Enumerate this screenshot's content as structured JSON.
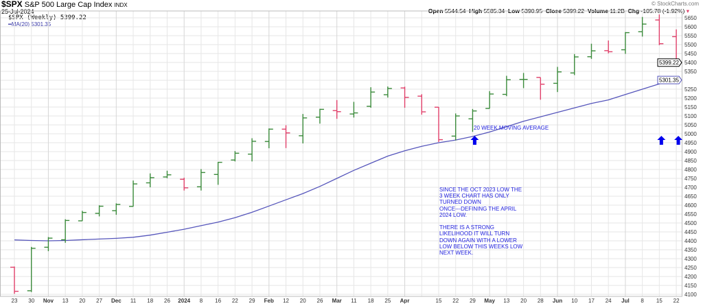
{
  "header": {
    "symbol": "$SPX",
    "name": "S&P 500 Large Cap Index",
    "exchange": "INDX",
    "date": "25-Jul-2024",
    "copyright": "© StockCharts.com",
    "legend_price": "$SPX (Weekly) 5399.22",
    "legend_ma": "MA(20) 5301.35",
    "open_label": "Open",
    "open": "5544.54",
    "high_label": "High",
    "high": "5585.34",
    "low_label": "Low",
    "low": "5390.95",
    "close_label": "Close",
    "close": "5399.22",
    "volume_label": "Volume",
    "volume": "11.2B",
    "chg_label": "Chg",
    "chg": "-105.78 (-1.92%)"
  },
  "annotations": {
    "ma_note": "20 WEEK MOVING AVERAGE",
    "commentary": "SINCE THE OCT 2023 LOW THE\n3 WEEK CHART HAS ONLY\nTURNED DOWN\nONCE---DEFINING THE APRIL\n2024 LOW.\n\nTHERE IS A STRONG\nLIKELIHOOD IT WILL TURN\nDOWN AGAIN WITH A LOWER\nLOW BELOW THIS WEEKS LOW\nNEXT WEEK."
  },
  "colors": {
    "up": "#3a8a3a",
    "down": "#e0406a",
    "ma": "#5555bb",
    "arrow": "#0000ee",
    "grid": "#e6e6e6"
  },
  "chart_data": {
    "type": "ohlc",
    "scale": "linear",
    "grid": true,
    "ylim": [
      4100,
      5650
    ],
    "yticks": [
      4100,
      4150,
      4200,
      4250,
      4300,
      4350,
      4400,
      4450,
      4500,
      4550,
      4600,
      4650,
      4700,
      4750,
      4800,
      4850,
      4900,
      4950,
      5000,
      5050,
      5100,
      5150,
      5200,
      5250,
      5350,
      5400,
      5450,
      5500,
      5550,
      5600,
      5650
    ],
    "price_tag": "5399.22",
    "ma_tag": "5301.35",
    "xlabels": [
      "23",
      "30",
      "Nov",
      "13",
      "20",
      "27",
      "Dec",
      "11",
      "18",
      "26",
      "2024",
      "8",
      "16",
      "22",
      "29",
      "Feb",
      "12",
      "20",
      "26",
      "Mar",
      "11",
      "18",
      "25",
      "Apr",
      "",
      "15",
      "22",
      "29",
      "May",
      "13",
      "20",
      "28",
      "Jun",
      "10",
      "17",
      "24",
      "Jul",
      "8",
      "15",
      "22"
    ],
    "bold_labels": [
      "Nov",
      "Dec",
      "2024",
      "Feb",
      "Mar",
      "Apr",
      "May",
      "Jun",
      "Jul"
    ],
    "ohlc": [
      [
        4252,
        4256,
        4103,
        4117
      ],
      [
        4120,
        4366,
        4113,
        4358
      ],
      [
        4364,
        4421,
        4342,
        4415
      ],
      [
        4406,
        4521,
        4389,
        4514
      ],
      [
        4512,
        4568,
        4511,
        4559
      ],
      [
        4554,
        4599,
        4537,
        4594
      ],
      [
        4569,
        4610,
        4546,
        4604
      ],
      [
        4593,
        4738,
        4592,
        4719
      ],
      [
        4725,
        4778,
        4700,
        4754
      ],
      [
        4758,
        4793,
        4751,
        4770
      ],
      [
        4745,
        4754,
        4682,
        4697
      ],
      [
        4703,
        4802,
        4682,
        4783
      ],
      [
        4772,
        4842,
        4714,
        4840
      ],
      [
        4853,
        4903,
        4845,
        4891
      ],
      [
        4886,
        4975,
        4845,
        4958
      ],
      [
        4957,
        5030,
        4919,
        5026
      ],
      [
        5026,
        5048,
        4920,
        5005
      ],
      [
        4989,
        5111,
        4946,
        5089
      ],
      [
        5093,
        5140,
        5057,
        5137
      ],
      [
        5130,
        5189,
        5084,
        5124
      ],
      [
        5111,
        5179,
        5091,
        5117
      ],
      [
        5154,
        5261,
        5146,
        5234
      ],
      [
        5219,
        5265,
        5203,
        5254
      ],
      [
        5257,
        5264,
        5146,
        5204
      ],
      [
        5211,
        5222,
        5107,
        5123
      ],
      [
        5149,
        5150,
        4954,
        4967
      ],
      [
        4987,
        5114,
        4963,
        5100
      ],
      [
        5084,
        5139,
        5011,
        5128
      ],
      [
        5142,
        5239,
        5142,
        5223
      ],
      [
        5221,
        5325,
        5211,
        5303
      ],
      [
        5305,
        5341,
        5256,
        5305
      ],
      [
        5316,
        5315,
        5191,
        5278
      ],
      [
        5283,
        5375,
        5234,
        5347
      ],
      [
        5341,
        5447,
        5329,
        5431
      ],
      [
        5432,
        5505,
        5420,
        5465
      ],
      [
        5466,
        5523,
        5451,
        5460
      ],
      [
        5471,
        5570,
        5448,
        5567
      ],
      [
        5572,
        5655,
        5545,
        5615
      ],
      [
        5638,
        5669,
        5497,
        5505
      ],
      [
        5544.54,
        5585.34,
        5390.95,
        5399.22
      ]
    ],
    "ma20": [
      4405,
      4402,
      4400,
      4402,
      4406,
      4410,
      4414,
      4420,
      4432,
      4448,
      4465,
      4485,
      4505,
      4530,
      4560,
      4595,
      4630,
      4665,
      4705,
      4750,
      4795,
      4835,
      4875,
      4905,
      4930,
      4950,
      4965,
      4985,
      5010,
      5040,
      5070,
      5095,
      5120,
      5145,
      5170,
      5190,
      5220,
      5250,
      5280,
      5301.35
    ],
    "arrows_at_weeks": [
      "15",
      "22",
      "29"
    ]
  }
}
